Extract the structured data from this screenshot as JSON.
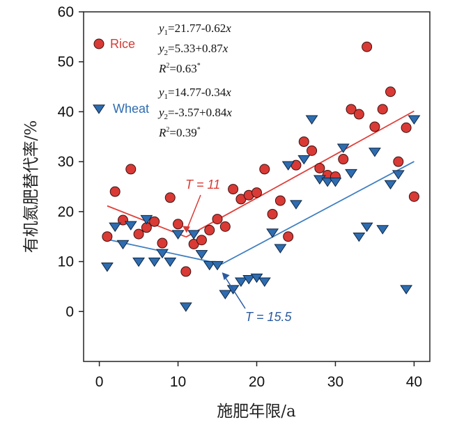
{
  "chart_data": {
    "type": "scatter",
    "xlabel": "施肥年限/a",
    "ylabel": "有机氮肥替代率/%",
    "xlim": [
      -2,
      42
    ],
    "ylim": [
      -10,
      60
    ],
    "xticks": [
      0,
      10,
      20,
      30,
      40
    ],
    "yticks": [
      0,
      10,
      20,
      30,
      40,
      50,
      60
    ],
    "grid": false,
    "series": [
      {
        "name": "Rice",
        "marker": "circle",
        "color": "#d93a35",
        "points": [
          [
            1,
            15.0
          ],
          [
            2,
            24.0
          ],
          [
            3,
            18.3
          ],
          [
            4,
            28.5
          ],
          [
            5,
            15.5
          ],
          [
            6,
            16.8
          ],
          [
            7,
            18.0
          ],
          [
            8,
            13.7
          ],
          [
            9,
            22.8
          ],
          [
            10,
            17.5
          ],
          [
            11,
            8.0
          ],
          [
            12,
            13.5
          ],
          [
            13,
            14.3
          ],
          [
            14,
            16.3
          ],
          [
            15,
            18.5
          ],
          [
            16,
            17.0
          ],
          [
            17,
            24.5
          ],
          [
            18,
            22.5
          ],
          [
            19,
            23.3
          ],
          [
            20,
            23.8
          ],
          [
            21,
            28.5
          ],
          [
            22,
            19.5
          ],
          [
            23,
            22.2
          ],
          [
            24,
            15.0
          ],
          [
            25,
            29.3
          ],
          [
            26,
            34.0
          ],
          [
            27,
            32.2
          ],
          [
            28,
            28.7
          ],
          [
            29,
            27.3
          ],
          [
            30,
            27.0
          ],
          [
            31,
            30.5
          ],
          [
            32,
            40.5
          ],
          [
            33,
            39.5
          ],
          [
            34,
            53.0
          ],
          [
            35,
            37.0
          ],
          [
            36,
            40.5
          ],
          [
            37,
            44.0
          ],
          [
            38,
            30.0
          ],
          [
            39,
            36.8
          ],
          [
            40,
            23.0
          ]
        ],
        "fit": [
          {
            "x": [
              1,
              11
            ],
            "y": [
              21.15,
              14.95
            ],
            "color": "#e0403a"
          },
          {
            "x": [
              11,
              40
            ],
            "y": [
              14.9,
              40.13
            ],
            "color": "#e0403a"
          }
        ],
        "equations": [
          {
            "lhs": "y",
            "sub": "1",
            "rhs": "=21.77-0.62",
            "var": "x"
          },
          {
            "lhs": "y",
            "sub": "2",
            "rhs": "=5.33+0.87",
            "var": "x"
          },
          {
            "lhs": "R",
            "sup": "2",
            "rhs": "=0.63",
            "star": "*"
          }
        ],
        "breakpoint_label": "T = 11",
        "breakpoint_x": 11,
        "breakpoint_y": 14.9
      },
      {
        "name": "Wheat",
        "marker": "triangle-down",
        "color": "#2e6cb0",
        "points": [
          [
            1,
            9.0
          ],
          [
            2,
            17.0
          ],
          [
            3,
            13.5
          ],
          [
            4,
            17.3
          ],
          [
            5,
            10.0
          ],
          [
            6,
            18.5
          ],
          [
            7,
            10.0
          ],
          [
            8,
            11.7
          ],
          [
            9,
            10.0
          ],
          [
            10,
            15.5
          ],
          [
            11,
            1.0
          ],
          [
            12,
            15.5
          ],
          [
            13,
            11.5
          ],
          [
            14,
            9.3
          ],
          [
            15,
            9.3
          ],
          [
            16,
            3.5
          ],
          [
            17,
            4.5
          ],
          [
            18,
            6.0
          ],
          [
            19,
            6.5
          ],
          [
            20,
            6.8
          ],
          [
            21,
            6.0
          ],
          [
            22,
            15.8
          ],
          [
            23,
            12.7
          ],
          [
            24,
            29.3
          ],
          [
            25,
            21.5
          ],
          [
            26,
            30.5
          ],
          [
            27,
            38.5
          ],
          [
            28,
            26.5
          ],
          [
            29,
            26.0
          ],
          [
            30,
            26.0
          ],
          [
            31,
            32.8
          ],
          [
            32,
            27.7
          ],
          [
            33,
            15.0
          ],
          [
            34,
            17.0
          ],
          [
            35,
            32.0
          ],
          [
            36,
            16.5
          ],
          [
            37,
            25.5
          ],
          [
            38,
            27.5
          ],
          [
            39,
            4.5
          ],
          [
            40,
            38.5
          ]
        ],
        "fit": [
          {
            "x": [
              1,
              15.5
            ],
            "y": [
              14.43,
              9.5
            ],
            "color": "#3f7ec0"
          },
          {
            "x": [
              15.5,
              40
            ],
            "y": [
              9.45,
              30.03
            ],
            "color": "#3f7ec0"
          }
        ],
        "equations": [
          {
            "lhs": "y",
            "sub": "1",
            "rhs": "=14.77-0.34",
            "var": "x"
          },
          {
            "lhs": "y",
            "sub": "2",
            "rhs": "=-3.57+0.84",
            "var": "x"
          },
          {
            "lhs": "R",
            "sup": "2",
            "rhs": "=0.39",
            "star": "*"
          }
        ],
        "breakpoint_label": "T = 15.5",
        "breakpoint_x": 15.5,
        "breakpoint_y": 9.5
      }
    ]
  }
}
